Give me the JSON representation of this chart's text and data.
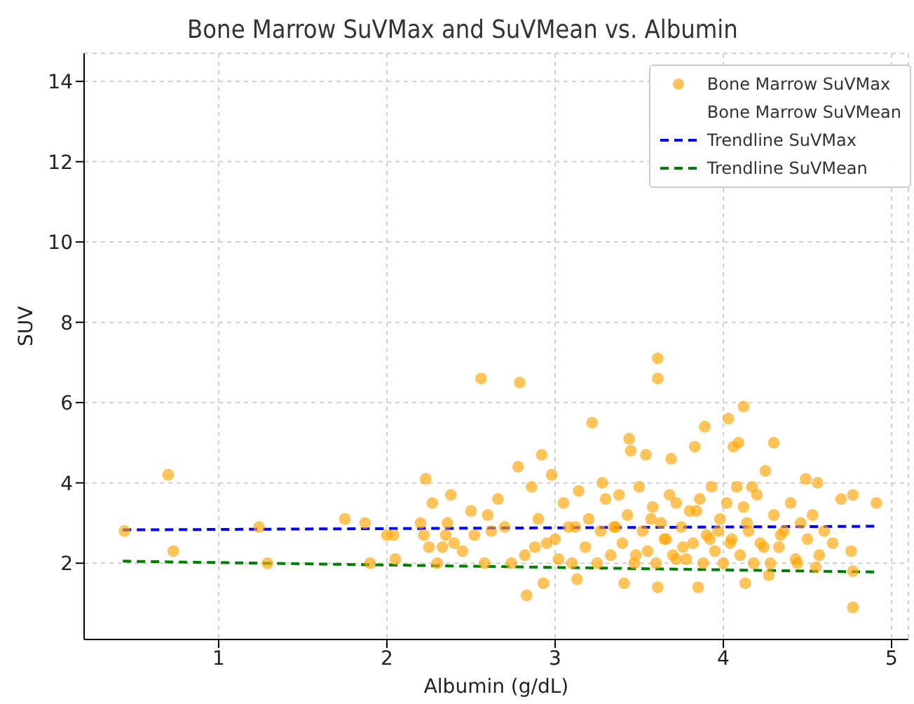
{
  "chart_data": {
    "type": "scatter",
    "title": "Bone Marrow SuVMax and SuVMean vs. Albumin",
    "xlabel": "Albumin (g/dL)",
    "ylabel": "SUV",
    "xlim": [
      0.2,
      5.1
    ],
    "xticks": [
      1,
      2,
      3,
      4,
      5
    ],
    "ylim": [
      0.1,
      14.7
    ],
    "yticks": [
      2,
      4,
      6,
      8,
      10,
      12,
      14
    ],
    "grid": true,
    "legend": "top right",
    "series": [
      {
        "name": "Bone Marrow SuVMax",
        "color": "#ffa500",
        "marker": "circle",
        "x": [
          0.44,
          0.7,
          0.73,
          1.24,
          1.29,
          1.75,
          1.87,
          1.9,
          2.0,
          2.04,
          2.05,
          2.23,
          2.2,
          2.27,
          2.38,
          2.56,
          2.79,
          2.83,
          2.92,
          3.22,
          3.44,
          3.45,
          3.61,
          3.61,
          3.54,
          3.69,
          3.83,
          3.89,
          4.03,
          4.12,
          4.06,
          4.09,
          4.3,
          4.49,
          4.56,
          4.77,
          4.91,
          4.77,
          4.77,
          4.76,
          3.61,
          3.85,
          4.13,
          2.93,
          3.13,
          3.41,
          2.22,
          2.25,
          2.3,
          2.33,
          2.36,
          2.4,
          2.45,
          2.5,
          2.52,
          2.58,
          2.62,
          2.66,
          2.7,
          2.74,
          2.78,
          2.82,
          2.86,
          2.9,
          2.95,
          2.98,
          3.02,
          3.05,
          3.08,
          3.1,
          3.14,
          3.18,
          3.2,
          3.25,
          3.28,
          3.3,
          3.33,
          3.36,
          3.38,
          3.4,
          3.43,
          3.47,
          3.5,
          3.52,
          3.55,
          3.58,
          3.6,
          3.63,
          3.65,
          3.68,
          3.7,
          3.72,
          3.75,
          3.78,
          3.8,
          3.82,
          3.86,
          3.88,
          3.9,
          3.93,
          3.95,
          3.98,
          4.0,
          4.02,
          4.05,
          4.08,
          4.1,
          4.12,
          4.15,
          4.18,
          4.2,
          4.22,
          4.25,
          4.28,
          4.3,
          4.33,
          4.36,
          4.4,
          4.43,
          4.46,
          4.5,
          4.53,
          4.57,
          4.6,
          4.65,
          4.7,
          2.35,
          2.6,
          2.88,
          3.0,
          3.12,
          3.27,
          3.48,
          3.57,
          3.66,
          3.76,
          3.84,
          3.97,
          4.04,
          4.14,
          4.24,
          4.34,
          4.44,
          4.55,
          3.35,
          3.72,
          3.92,
          4.17,
          4.27
        ],
        "values": [
          2.8,
          4.2,
          2.3,
          2.9,
          2.0,
          3.1,
          3.0,
          2.0,
          2.7,
          2.7,
          2.1,
          4.1,
          3.0,
          3.5,
          3.7,
          6.6,
          6.5,
          1.2,
          4.7,
          5.5,
          5.1,
          4.8,
          7.1,
          6.6,
          4.7,
          4.6,
          4.9,
          5.4,
          5.6,
          5.9,
          4.9,
          5.0,
          5.0,
          4.1,
          4.0,
          3.7,
          3.5,
          0.9,
          1.8,
          2.3,
          1.4,
          1.4,
          1.5,
          1.5,
          1.6,
          1.5,
          2.7,
          2.4,
          2.0,
          2.4,
          3.0,
          2.5,
          2.3,
          3.3,
          2.7,
          2.0,
          2.8,
          3.6,
          2.9,
          2.0,
          4.4,
          2.2,
          3.9,
          3.1,
          2.5,
          4.2,
          2.1,
          3.5,
          2.9,
          2.0,
          3.8,
          2.4,
          3.1,
          2.0,
          4.0,
          3.6,
          2.2,
          2.9,
          3.7,
          2.5,
          3.2,
          2.0,
          3.9,
          2.8,
          2.3,
          3.4,
          2.0,
          3.0,
          2.6,
          3.7,
          2.2,
          3.5,
          2.9,
          2.1,
          3.3,
          2.5,
          3.6,
          2.0,
          2.7,
          3.9,
          2.3,
          3.1,
          2.0,
          3.5,
          2.6,
          3.9,
          2.2,
          3.4,
          2.8,
          2.0,
          3.7,
          2.5,
          4.3,
          2.0,
          3.2,
          2.4,
          2.8,
          3.5,
          2.1,
          3.0,
          2.6,
          3.2,
          2.2,
          2.8,
          2.5,
          3.6,
          2.7,
          3.2,
          2.4,
          2.6,
          2.9,
          2.8,
          2.2,
          3.1,
          2.6,
          2.4,
          3.3,
          2.8,
          2.5,
          3.0,
          2.4,
          2.7,
          2.0,
          1.9,
          2.9,
          2.1,
          2.6,
          3.9,
          1.7
        ]
      },
      {
        "name": "Bone Marrow SuVMean",
        "type": "scatter",
        "color": null
      },
      {
        "name": "Trendline SuVMax",
        "type": "line",
        "color": "#0000ff",
        "line_style": "dashed",
        "x": [
          0.43,
          4.9
        ],
        "values": [
          2.83,
          2.92
        ]
      },
      {
        "name": "Trendline SuVMean",
        "type": "line",
        "color": "#008000",
        "line_style": "dashed",
        "x": [
          0.43,
          4.9
        ],
        "values": [
          2.05,
          1.78
        ]
      }
    ]
  }
}
